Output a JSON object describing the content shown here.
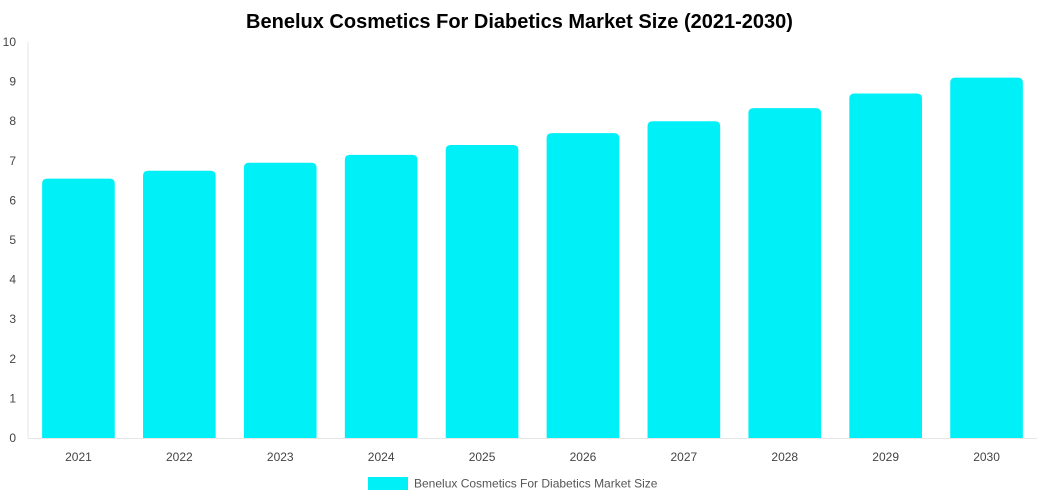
{
  "chart_data": {
    "type": "bar",
    "title": "Benelux Cosmetics For Diabetics Market Size (2021-2030)",
    "xlabel": "",
    "ylabel": "",
    "categories": [
      "2021",
      "2022",
      "2023",
      "2024",
      "2025",
      "2026",
      "2027",
      "2028",
      "2029",
      "2030"
    ],
    "series": [
      {
        "name": "Benelux Cosmetics For Diabetics Market Size",
        "values": [
          6.55,
          6.75,
          6.95,
          7.15,
          7.4,
          7.7,
          8.0,
          8.33,
          8.7,
          9.1
        ],
        "color": "#00F0F8"
      }
    ],
    "ylim": [
      0,
      10
    ],
    "yticks": [
      "0",
      "1",
      "2",
      "3",
      "4",
      "5",
      "6",
      "7",
      "8",
      "9",
      "10"
    ],
    "grid": false,
    "legend_position": "bottom"
  }
}
